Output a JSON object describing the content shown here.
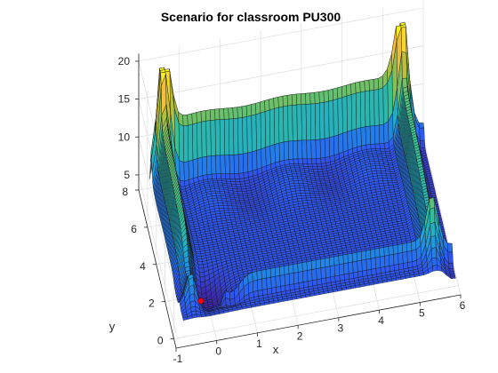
{
  "chart_data": {
    "type": "surface",
    "title": "Scenario for classroom PU300",
    "xlabel": "x",
    "ylabel": "y",
    "zlabel": "",
    "xlim": [
      -1,
      6
    ],
    "ylim": [
      -0.5,
      8
    ],
    "zlim": [
      3,
      21
    ],
    "x_ticks": [
      -1,
      0,
      1,
      2,
      3,
      4,
      5,
      6
    ],
    "y_ticks": [
      0,
      2,
      4,
      6,
      8
    ],
    "z_ticks": [
      5,
      10,
      15,
      20
    ],
    "grid": true,
    "colormap": "parula",
    "colormap_stops": [
      "#3e26a8",
      "#2d5cf5",
      "#1aa5da",
      "#38c291",
      "#a5be3f",
      "#f7bd3a",
      "#f9fb15"
    ],
    "surface": {
      "x_range": [
        -0.8,
        5.9
      ],
      "y_range": [
        -0.3,
        7.4
      ],
      "floor_level": 6,
      "wall_height": 16,
      "wall_x_low": -0.5,
      "wall_x_high": 5.4,
      "wall_y_high": 7.0,
      "peaks": [
        {
          "x": -0.5,
          "y": 7.0,
          "z": 21
        },
        {
          "x": 5.3,
          "y": 7.1,
          "z": 21
        },
        {
          "x": 5.4,
          "y": 0.6,
          "z": 17
        },
        {
          "x": 0.5,
          "y": 0.5,
          "z": 14
        }
      ],
      "minimum": {
        "x": -0.2,
        "y": 1.2,
        "z": 3.5
      }
    },
    "marker": {
      "x": -0.2,
      "y": 1.3,
      "z": 4,
      "color": "#ff0000"
    }
  }
}
